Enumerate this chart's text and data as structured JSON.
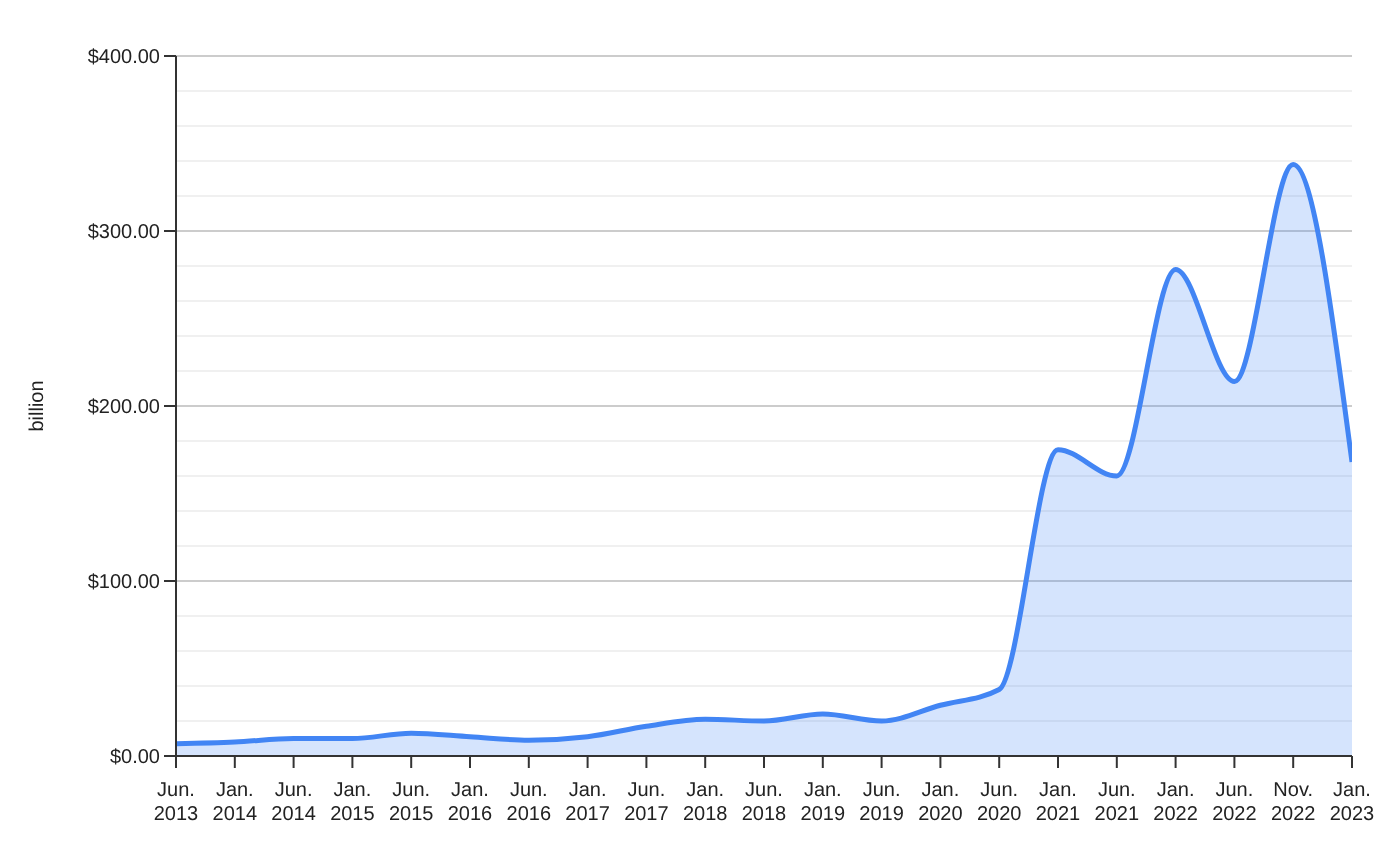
{
  "chart_data": {
    "type": "area",
    "ylabel": "billion",
    "categories": [
      "Jun.\n2013",
      "Jan.\n2014",
      "Jun.\n2014",
      "Jan.\n2015",
      "Jun.\n2015",
      "Jan.\n2016",
      "Jun.\n2016",
      "Jan.\n2017",
      "Jun.\n2017",
      "Jan.\n2018",
      "Jun.\n2018",
      "Jan.\n2019",
      "Jun.\n2019",
      "Jan.\n2020",
      "Jun.\n2020",
      "Jan.\n2021",
      "Jun.\n2021",
      "Jan.\n2022",
      "Jun.\n2022",
      "Nov.\n2022",
      "Jan.\n2023"
    ],
    "series": [
      {
        "color": "#4285f4",
        "values": [
          7,
          8,
          10,
          10,
          13,
          11,
          9,
          11,
          17,
          21,
          20,
          24,
          20,
          29,
          38,
          175,
          160,
          278,
          214,
          338,
          168
        ]
      }
    ],
    "ylim": [
      0,
      400
    ],
    "yticks": [
      {
        "value": 0,
        "label": "$0.00"
      },
      {
        "value": 100,
        "label": "$100.00"
      },
      {
        "value": 200,
        "label": "$200.00"
      },
      {
        "value": 300,
        "label": "$300.00"
      },
      {
        "value": 400,
        "label": "$400.00"
      }
    ],
    "grid": "y"
  }
}
